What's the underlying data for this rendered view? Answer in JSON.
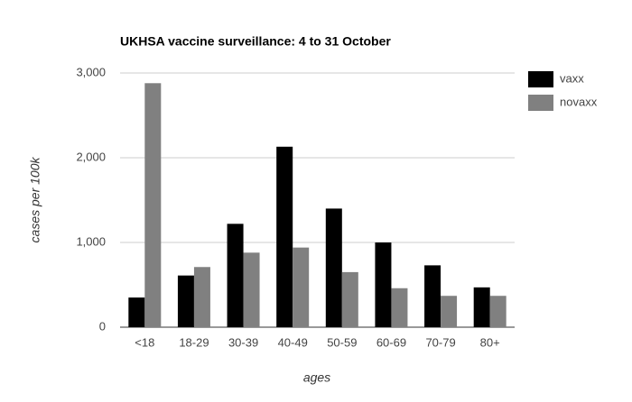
{
  "chart_data": {
    "type": "bar",
    "title": "UKHSA vaccine surveillance: 4 to 31 October",
    "x_label": "ages",
    "y_label": "cases per 100k",
    "categories": [
      "<18",
      "18-29",
      "30-39",
      "40-49",
      "50-59",
      "60-69",
      "70-79",
      "80+"
    ],
    "series": [
      {
        "name": "vaxx",
        "color": "#000000",
        "values": [
          350,
          610,
          1220,
          2130,
          1400,
          1000,
          730,
          470
        ]
      },
      {
        "name": "novaxx",
        "color": "#808080",
        "values": [
          2880,
          710,
          880,
          940,
          650,
          460,
          370,
          370
        ]
      }
    ],
    "ylim": [
      0,
      3000
    ],
    "yticks": [
      0,
      {
        "value": 1000,
        "label": "1,000"
      },
      {
        "value": 2000,
        "label": "2,000"
      },
      {
        "value": 3000,
        "label": "3,000"
      }
    ],
    "grid": true,
    "legend": "right"
  }
}
